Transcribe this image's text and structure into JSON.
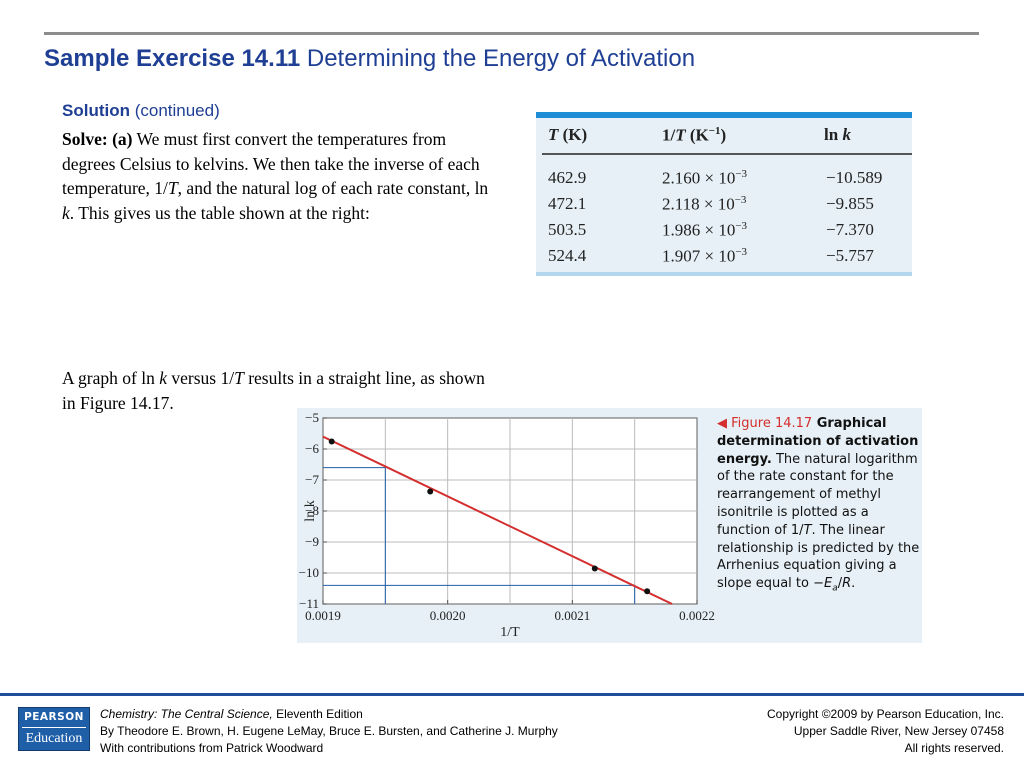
{
  "title": {
    "bold": "Sample Exercise 14.11",
    "rest": " Determining the Energy of Activation"
  },
  "solution": {
    "label": "Solution",
    "suffix": " (continued)"
  },
  "para1": {
    "lead": "Solve: (a)",
    "t1": " We must first convert the temperatures from degrees Celsius to kelvins. We then take the inverse of each temperature, 1/",
    "T": "T",
    "t2": ", and the natural log of each rate constant, ln ",
    "k": "k",
    "t3": ". This gives us the table shown at the right:"
  },
  "para2": {
    "t1": "A graph of ln ",
    "k": "k",
    "t2": " versus 1/",
    "T": "T",
    "t3": " results in a straight line, as shown in Figure 14.17."
  },
  "table": {
    "headers": [
      {
        "var": "T",
        "unit": " (K)"
      },
      {
        "pre": "1/",
        "var": "T",
        "unit": " (K",
        "sup": "−1",
        "close": ")"
      },
      {
        "pre": "ln ",
        "var": "k"
      }
    ],
    "rows": [
      {
        "T": "462.9",
        "invT": "2.160 × 10",
        "exp": "−3",
        "lnk": "−10.589"
      },
      {
        "T": "472.1",
        "invT": "2.118 × 10",
        "exp": "−3",
        "lnk": "−9.855"
      },
      {
        "T": "503.5",
        "invT": "1.986 × 10",
        "exp": "−3",
        "lnk": "−7.370"
      },
      {
        "T": "524.4",
        "invT": "1.907 × 10",
        "exp": "−3",
        "lnk": "−5.757"
      }
    ]
  },
  "chart_data": {
    "type": "scatter",
    "title": "",
    "xlabel": "1/T",
    "ylabel": "ln k",
    "xlim": [
      0.0019,
      0.0022
    ],
    "ylim": [
      -11,
      -5
    ],
    "xticks": [
      "0.0019",
      "0.0020",
      "0.0021",
      "0.0022"
    ],
    "yticks": [
      "−5",
      "−6",
      "−7",
      "−8",
      "−9",
      "−10",
      "−11"
    ],
    "grid": true,
    "series": [
      {
        "x": [
          0.001907,
          0.001986,
          0.002118,
          0.00216
        ],
        "y": [
          -5.757,
          -7.37,
          -9.855,
          -10.589
        ],
        "color": "#111111"
      }
    ],
    "fit_line": {
      "x": [
        0.0019,
        0.00218
      ],
      "y": [
        -5.6,
        -11.0
      ],
      "color": "#d42e2e"
    },
    "guides": [
      {
        "x": [
          0.0019,
          0.00195,
          0.00195
        ],
        "y": [
          -6.6,
          -6.6,
          -11
        ]
      },
      {
        "x": [
          0.0019,
          0.00215,
          0.00215
        ],
        "y": [
          -10.4,
          -10.4,
          -11
        ]
      }
    ]
  },
  "caption": {
    "fignum": "◀ Figure 14.17",
    "bold": " Graphical determination of activation energy.",
    "text1": " The natural logarithm of the rate constant for the rearrangement of methyl isonitrile is plotted as a function of 1/",
    "T": "T",
    "text2": ". The linear relationship is predicted by the Arrhenius equation giving a slope equal to −",
    "Ea": "E",
    "Ea_sub": "a",
    "text3": "/",
    "R": "R",
    "text4": "."
  },
  "footer": {
    "logo_top": "PEARSON",
    "logo_bottom": "Education",
    "book_title": "Chemistry: The Central Science,",
    "edition": " Eleventh Edition",
    "authors": "By Theodore E. Brown, H. Eugene LeMay, Bruce E. Bursten, and Catherine J. Murphy",
    "contrib": "With contributions from Patrick Woodward",
    "copyright": "Copyright ©2009 by Pearson Education, Inc.",
    "address": "Upper Saddle River, New Jersey 07458",
    "rights": "All rights reserved."
  },
  "colors": {
    "accent": "#1f3f94",
    "table_bar": "#1f8dd6",
    "panel_bg": "#e6f0f6",
    "fit_line": "#d42e2e",
    "guide": "#1f5fa8"
  }
}
